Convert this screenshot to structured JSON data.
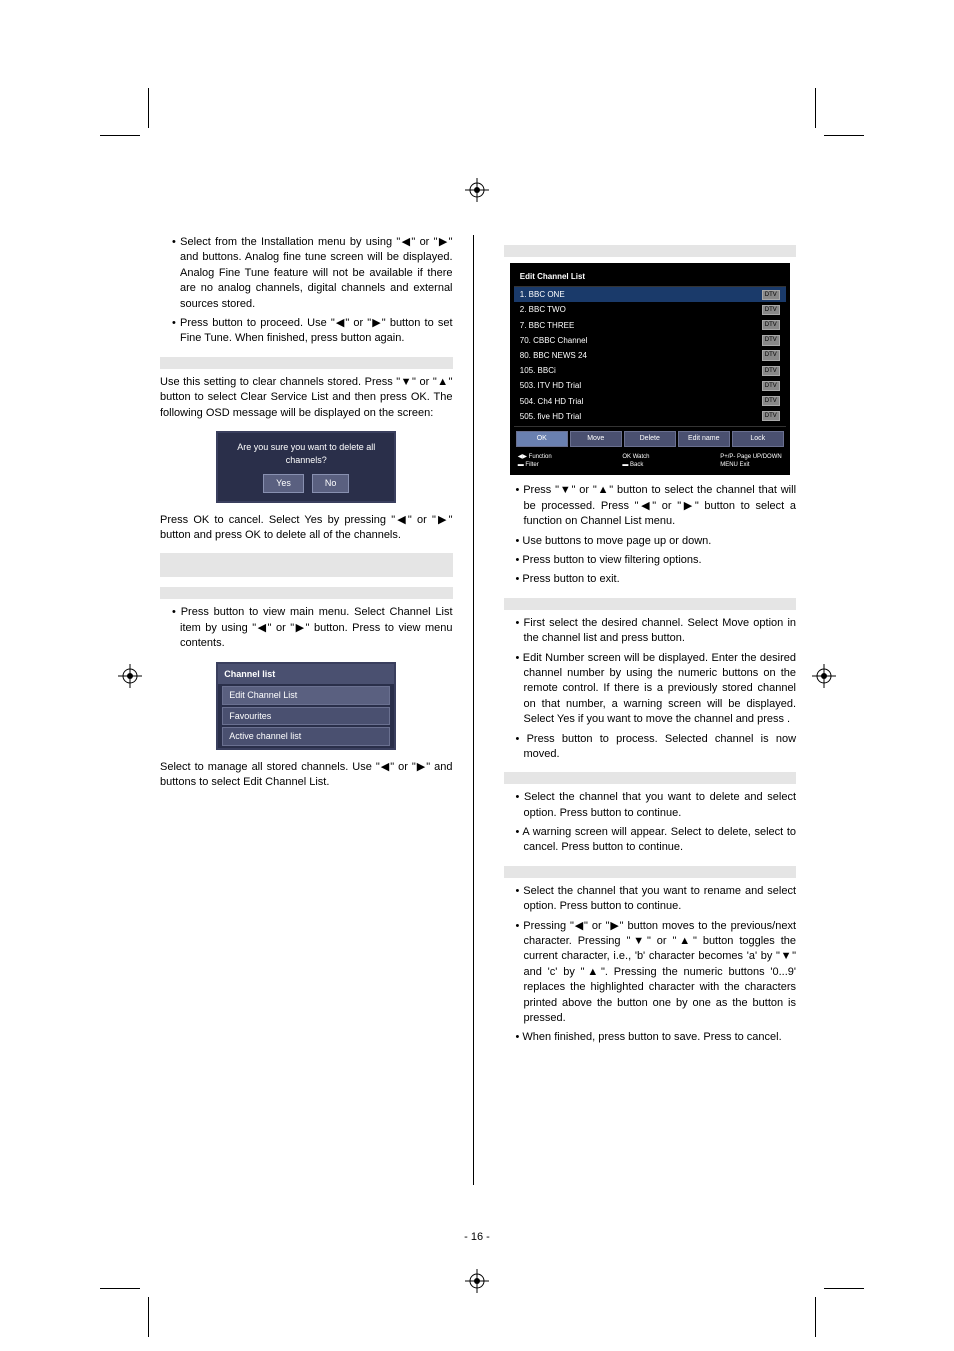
{
  "left_column": {
    "bullets_top": [
      {
        "prefix": "• Select ",
        "gap": "                                  ",
        "rest": " from the Installation menu by using \"◀\" or \"▶\" and            buttons. Analog fine tune screen will be displayed. Analog Fine Tune feature will not be available if there are no analog channels, digital channels and external sources stored."
      },
      {
        "prefix": "• Press ",
        "gap": "        ",
        "rest": " button to proceed. Use \"◀\" or \"▶\" button to set Fine Tune. When finished, press            button again."
      }
    ],
    "clear_para": "Use this setting to clear channels stored. Press \"▼\" or \"▲\" button to select Clear Service List and then press OK. The following OSD message will be displayed on the screen:",
    "confirm_text": "Are you sure you want to delete all channels?",
    "confirm_yes": "Yes",
    "confirm_no": "No",
    "after_confirm": "Press OK to cancel. Select Yes by pressing \"◀\" or \"▶\" button and press OK to delete all of the channels.",
    "press_menu": "• Press              button to view main menu. Select Channel List item by using \"◀\" or \"▶\" button. Press        to view menu contents.",
    "channel_list_header": "Channel list",
    "channel_list_items": [
      "Edit Channel List",
      "Favourites",
      "Active channel list"
    ],
    "select_para": "Select                                    to manage all stored channels. Use \"◀\" or \"▶\"  and           buttons to select Edit Channel List."
  },
  "right_column": {
    "edit_header": "Edit Channel List",
    "channels": [
      "1. BBC ONE",
      "2. BBC TWO",
      "7. BBC THREE",
      "70. CBBC Channel",
      "80. BBC NEWS 24",
      "105. BBCi",
      "503. ITV HD Trial",
      "504. Ch4 HD Trial",
      "505. five HD Trial"
    ],
    "edit_btns": [
      "OK",
      "Move",
      "Delete",
      "Edit name",
      "Lock"
    ],
    "edit_footer_left": "Function",
    "edit_footer_left2": "Filter",
    "edit_footer_mid": "Watch",
    "edit_footer_mid2": "Back",
    "edit_footer_right": "Page UP/DOWN",
    "edit_footer_right2": "Exit",
    "after_edit": [
      "• Press \"▼\" or \"▲\" button to select the channel that will be processed. Press \"◀\" or \"▶\" button to select a function on Channel List menu.",
      "• Use              buttons to move page up or down.",
      "• Press              button to view filtering options.",
      "• Press              button to exit."
    ],
    "move_bullets": [
      "• First select the desired channel. Select Move option in the channel list and press            button.",
      "• Edit Number screen will be displayed. Enter the desired channel number by using the numeric buttons on the remote control. If there is a previously stored channel on that number, a warning screen will be displayed. Select Yes if you want to move the channel and press        .",
      "• Press           button to process. Selected channel is now moved."
    ],
    "delete_bullets": [
      "• Select the channel that you want to delete and select                  option. Press           button to continue.",
      "• A warning screen will appear. Select            to delete, select           to cancel. Press           button to continue."
    ],
    "rename_bullets": [
      "• Select the channel that you want to rename and select                        option. Press            button to continue.",
      "• Pressing \"◀\" or \"▶\" button moves to the previous/next character. Pressing \"▼\" or \"▲\" button toggles the current character, i.e., 'b' character becomes 'a' by \"▼\" and 'c' by \"▲\". Pressing the numeric buttons '0...9' replaces the highlighted character with the characters printed above the button one by one as the button is pressed.",
      "• When finished, press             button to save. Press                 to cancel."
    ]
  },
  "page_num": "- 16 -"
}
